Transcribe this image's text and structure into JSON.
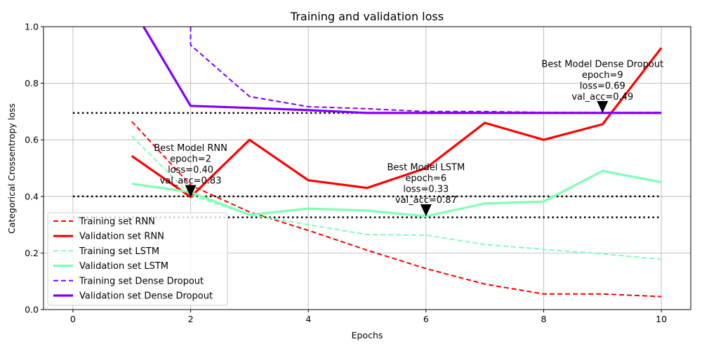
{
  "chart_data": {
    "type": "line",
    "title": "Training and validation loss",
    "xlabel": "Epochs",
    "ylabel": "Categorical Crossentropy loss",
    "xlim": [
      -0.5,
      10.5
    ],
    "ylim": [
      0,
      1.0
    ],
    "xticks": [
      0,
      2,
      4,
      6,
      8,
      10
    ],
    "yticks": [
      0.0,
      0.2,
      0.4,
      0.6,
      0.8,
      1.0
    ],
    "xtick_labels": [
      "0",
      "2",
      "4",
      "6",
      "8",
      "10"
    ],
    "ytick_labels": [
      "0.0",
      "0.2",
      "0.4",
      "0.6",
      "0.8",
      "1.0"
    ],
    "grid": true,
    "legend_position": "lower-left",
    "series": [
      {
        "name": "Training set RNN",
        "style": "dashed",
        "color": "#ff0000",
        "x": [
          1,
          2,
          3,
          4,
          5,
          6,
          7,
          8,
          9,
          10
        ],
        "y": [
          0.665,
          0.44,
          0.345,
          0.28,
          0.21,
          0.145,
          0.09,
          0.055,
          0.055,
          0.046
        ]
      },
      {
        "name": "Validation set RNN",
        "style": "solid",
        "color": "#ff0000",
        "x": [
          1,
          2,
          3,
          4,
          5,
          6,
          7,
          8,
          9,
          10
        ],
        "y": [
          0.543,
          0.398,
          0.6,
          0.457,
          0.43,
          0.5,
          0.66,
          0.6,
          0.655,
          0.925
        ]
      },
      {
        "name": "Training set LSTM",
        "style": "dashed",
        "color": "#80ffb4",
        "x": [
          1,
          2,
          3,
          4,
          5,
          6,
          7,
          8,
          9,
          10
        ],
        "y": [
          0.613,
          0.405,
          0.335,
          0.3,
          0.265,
          0.263,
          0.23,
          0.213,
          0.197,
          0.178
        ]
      },
      {
        "name": "Validation set LSTM",
        "style": "solid",
        "color": "#80ffb4",
        "x": [
          1,
          2,
          3,
          4,
          5,
          6,
          7,
          8,
          9,
          10
        ],
        "y": [
          0.445,
          0.415,
          0.335,
          0.357,
          0.35,
          0.33,
          0.375,
          0.382,
          0.49,
          0.45
        ]
      },
      {
        "name": "Training set Dense Dropout",
        "style": "dashed",
        "color": "#8000ff",
        "x": [
          2,
          2,
          3,
          4,
          5,
          6,
          7,
          8,
          9,
          10
        ],
        "y": [
          1.0,
          0.935,
          0.753,
          0.717,
          0.71,
          0.7,
          0.7,
          0.697,
          0.697,
          0.697
        ]
      },
      {
        "name": "Validation set Dense Dropout",
        "style": "solid",
        "color": "#8000ff",
        "x": [
          1.2,
          2,
          3,
          4,
          5,
          6,
          7,
          8,
          9,
          10
        ],
        "y": [
          1.0,
          0.72,
          0.713,
          0.705,
          0.695,
          0.695,
          0.695,
          0.695,
          0.695,
          0.695
        ]
      }
    ],
    "reference_lines": [
      {
        "y": 0.695,
        "style": "dotted",
        "color": "#000000"
      },
      {
        "y": 0.4,
        "style": "dotted",
        "color": "#000000"
      },
      {
        "y": 0.326,
        "style": "dotted",
        "color": "#000000"
      }
    ],
    "annotations": [
      {
        "x": 2,
        "y": 0.398,
        "lines": [
          "Best Model RNN",
          "epoch=2",
          "loss=0.40",
          "val_acc=0.83"
        ]
      },
      {
        "x": 6,
        "y": 0.33,
        "lines": [
          "Best Model LSTM",
          "epoch=6",
          "loss=0.33",
          "val_acc=0.87"
        ]
      },
      {
        "x": 9,
        "y": 0.695,
        "lines": [
          "Best Model Dense Dropout",
          "epoch=9",
          "loss=0.69",
          "val_acc=0.49"
        ]
      }
    ]
  }
}
